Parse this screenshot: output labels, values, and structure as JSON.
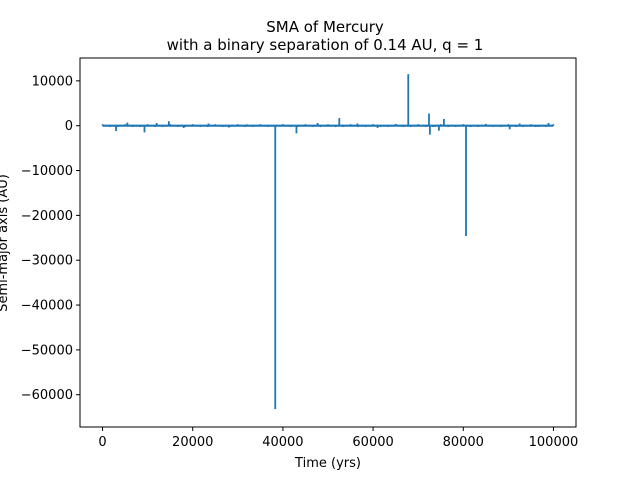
{
  "chart_data": {
    "type": "line",
    "title": "SMA of Mercury",
    "subtitle": "with a binary separation of 0.14 AU, q = 1",
    "xlabel": "Time (yrs)",
    "ylabel": "Semi-major axis (AU)",
    "xlim": [
      -5000,
      105000
    ],
    "ylim": [
      -67200,
      15100
    ],
    "grid": false,
    "x_ticks": [
      0,
      20000,
      40000,
      60000,
      80000,
      100000
    ],
    "x_tick_labels": [
      "0",
      "20000",
      "40000",
      "60000",
      "80000",
      "100000"
    ],
    "y_ticks": [
      10000,
      0,
      -10000,
      -20000,
      -30000,
      -40000,
      -50000,
      -60000
    ],
    "y_tick_labels": [
      "10000",
      "0",
      "−10000",
      "−20000",
      "−30000",
      "−40000",
      "−50000",
      "−60000"
    ],
    "series": [
      {
        "color": "#1f77b4",
        "baseline": 0,
        "x_range": [
          0,
          100000
        ],
        "spikes": [
          {
            "x": 3000,
            "y": -1200
          },
          {
            "x": 5500,
            "y": 700
          },
          {
            "x": 9300,
            "y": -1500
          },
          {
            "x": 12000,
            "y": 600
          },
          {
            "x": 14700,
            "y": 1000
          },
          {
            "x": 18000,
            "y": -500
          },
          {
            "x": 23500,
            "y": 500
          },
          {
            "x": 28000,
            "y": -400
          },
          {
            "x": 32000,
            "y": 300
          },
          {
            "x": 38300,
            "y": -63200
          },
          {
            "x": 43000,
            "y": -1700
          },
          {
            "x": 47700,
            "y": 600
          },
          {
            "x": 52500,
            "y": 1700
          },
          {
            "x": 56500,
            "y": 500
          },
          {
            "x": 61000,
            "y": -500
          },
          {
            "x": 65000,
            "y": 400
          },
          {
            "x": 67800,
            "y": 11500
          },
          {
            "x": 72400,
            "y": 2700
          },
          {
            "x": 72600,
            "y": -2000
          },
          {
            "x": 74600,
            "y": -1100
          },
          {
            "x": 75700,
            "y": 1500
          },
          {
            "x": 80600,
            "y": -24600
          },
          {
            "x": 85000,
            "y": 400
          },
          {
            "x": 90300,
            "y": -800
          },
          {
            "x": 92500,
            "y": 500
          },
          {
            "x": 96000,
            "y": -300
          },
          {
            "x": 98900,
            "y": 600
          }
        ]
      }
    ]
  }
}
